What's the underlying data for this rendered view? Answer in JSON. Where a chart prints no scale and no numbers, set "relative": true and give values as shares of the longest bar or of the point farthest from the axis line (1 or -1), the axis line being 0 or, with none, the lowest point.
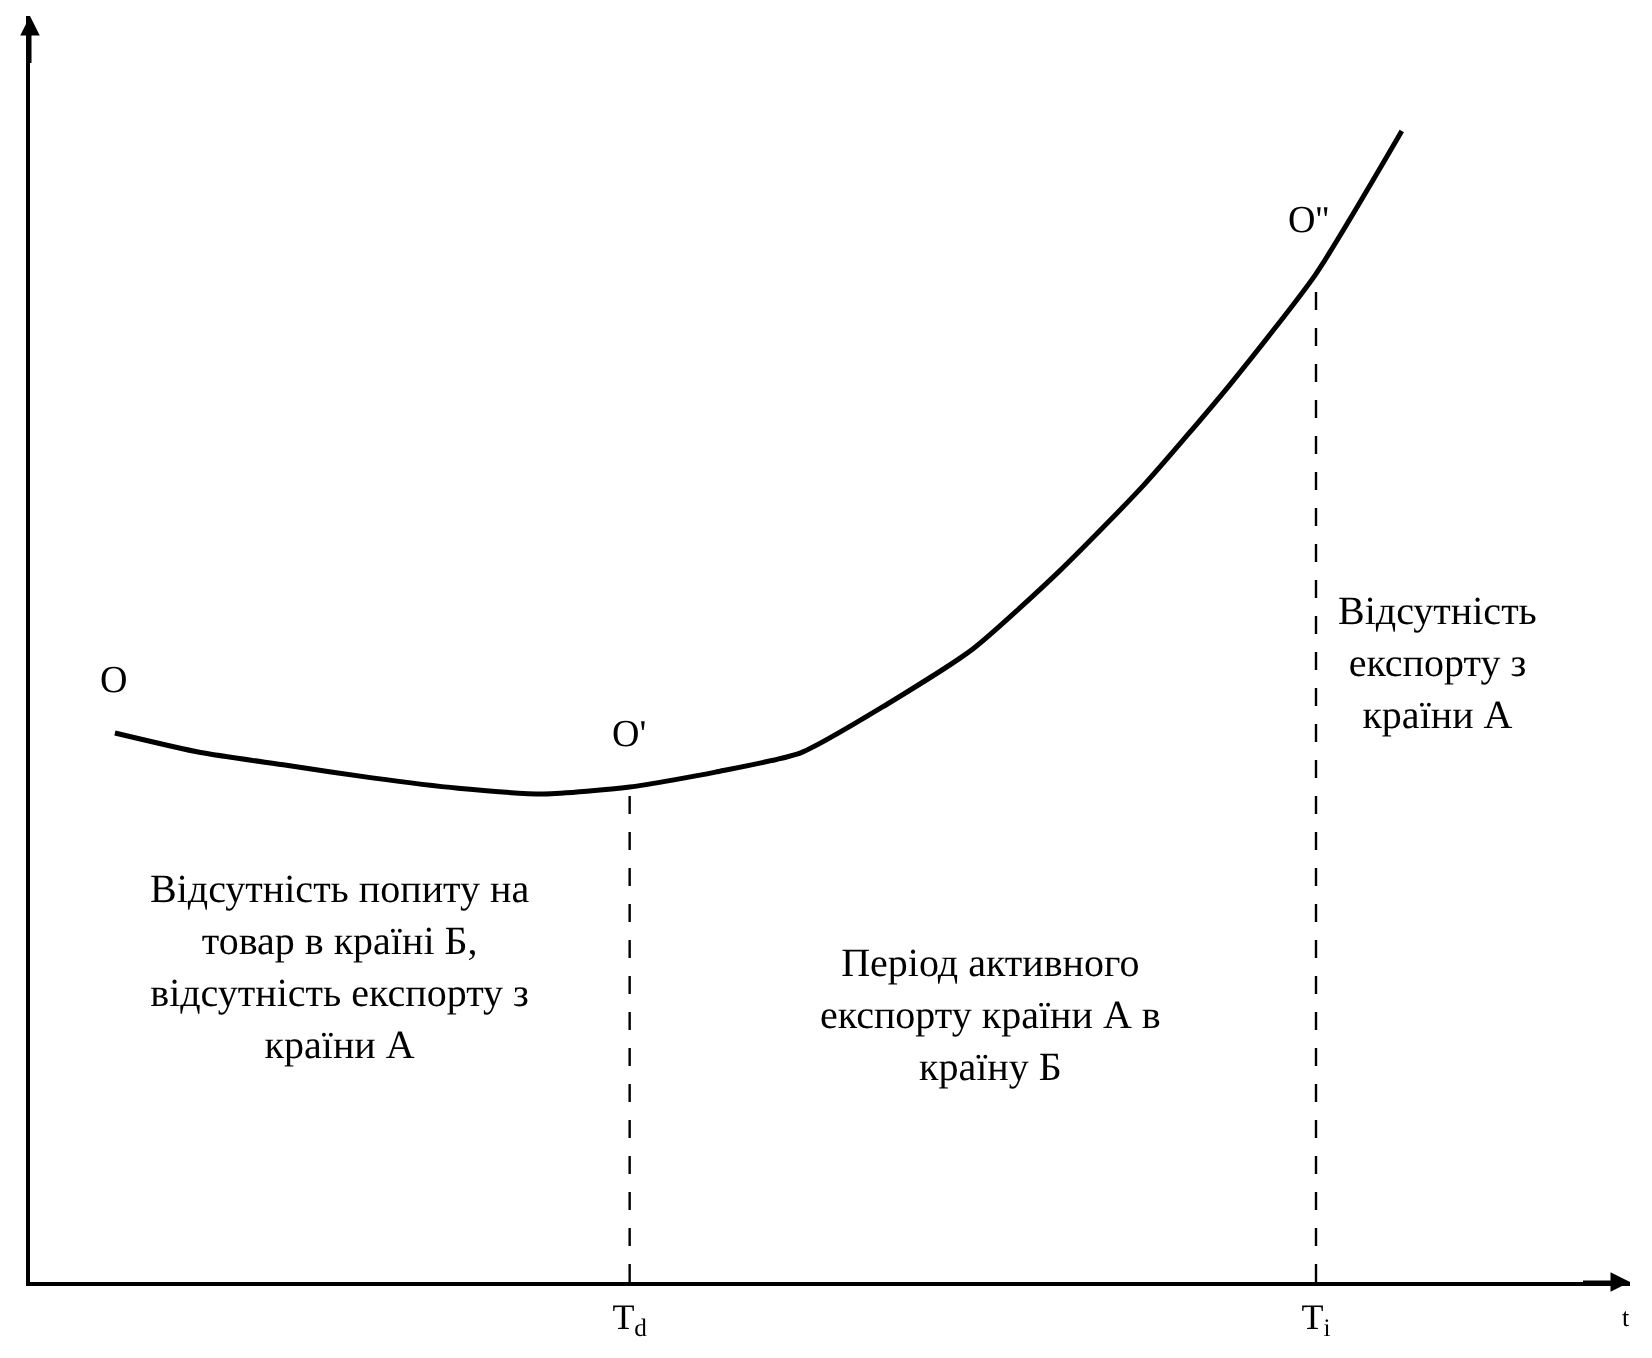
{
  "chart_data": {
    "type": "line",
    "relative": true,
    "categories": [
      null,
      null,
      null,
      null,
      null,
      null,
      "T$_{d}$",
      null,
      null,
      null,
      null,
      null,
      null,
      null,
      "T$_{i}$",
      null
    ],
    "series": [
      {
        "color": "#000000",
        "values": [
          0.477,
          0.46,
          0.449,
          0.438,
          0.429,
          0.424,
          0.43,
          0.443,
          0.46,
          0.502,
          0.55,
          0.617,
          0.693,
          0.78,
          0.876,
          1.0
        ]
      }
    ],
    "tick_labels": "x",
    "marker": "none",
    "line_style": "solid",
    "ref_lines": [
      {
        "axis": "x",
        "value": "T$_{d}$",
        "line_style": "dashed",
        "color": "#000000"
      },
      {
        "axis": "x",
        "value": "T$_{i}$",
        "line_style": "dashed",
        "color": "#000000"
      }
    ],
    "annotations": [
      {
        "text": "O",
        "y": 0.477
      },
      {
        "text": "O'",
        "x": "T$_{d}$",
        "y": 0.43
      },
      {
        "text": "O''",
        "x": "T$_{i}$",
        "y": 0.876
      },
      "Відсутність попиту на\nтовар в країні Б,\nвідсутність експорту з\nкраїни А",
      "Період активного\nекспорту країни А в\nкраїну Б",
      "Відсутність\nекспорту з\nкраїни А",
      "t"
    ]
  }
}
